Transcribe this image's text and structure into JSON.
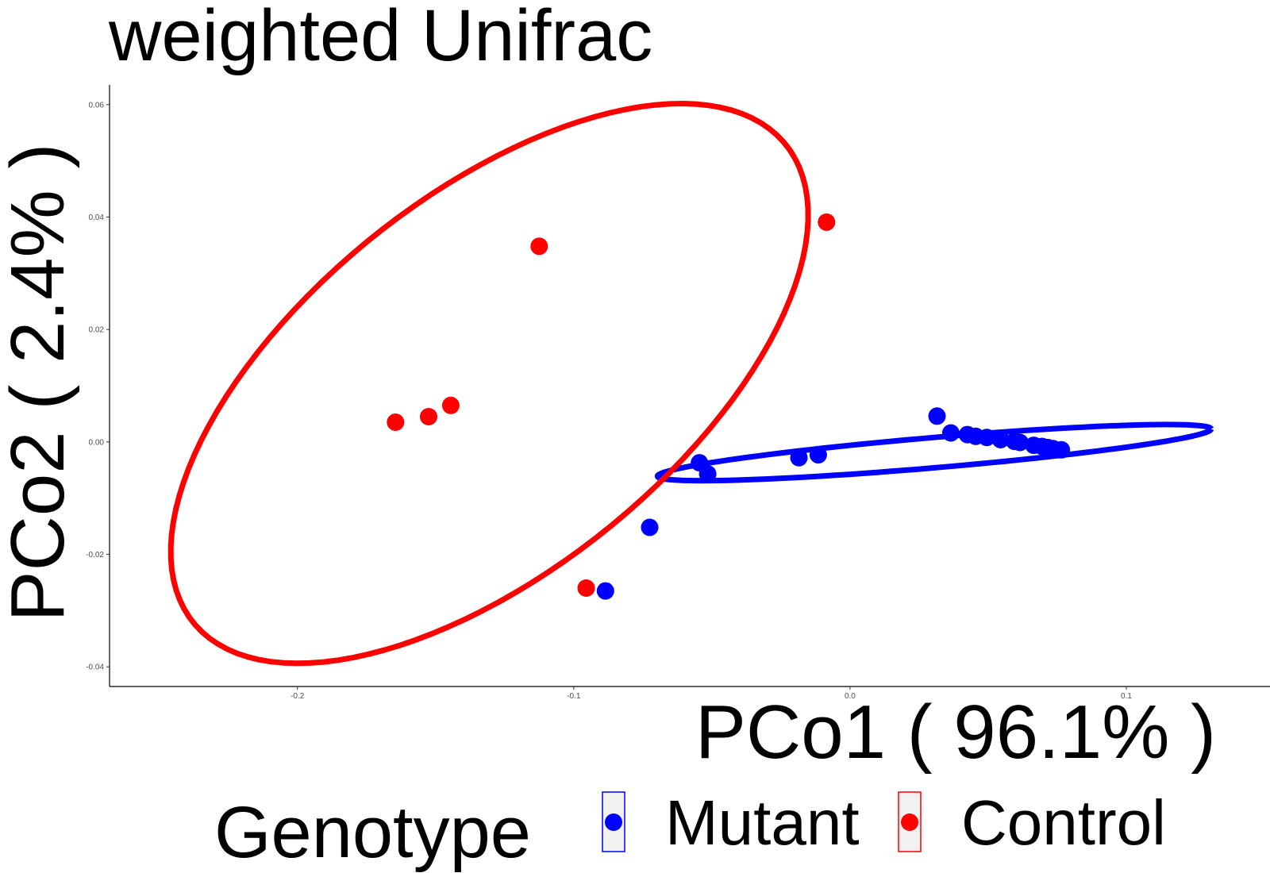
{
  "chart_data": {
    "type": "scatter",
    "title": "weighted Unifrac",
    "xlabel": "PCo1 ( 96.1% )",
    "ylabel": "PCo2 ( 2.4% )",
    "xlim": [
      -0.268,
      0.152
    ],
    "ylim": [
      -0.0435,
      0.0635
    ],
    "x_ticks": [
      -0.2,
      -0.1,
      0.0,
      0.1
    ],
    "x_tick_labels": [
      "-0.2",
      "-0.1",
      "0.0",
      "0.1"
    ],
    "y_ticks": [
      -0.04,
      -0.02,
      0.0,
      0.02,
      0.04,
      0.06
    ],
    "y_tick_labels": [
      "-0.04",
      "-0.02",
      "0.00",
      "0.02",
      "0.04",
      "0.06"
    ],
    "grid": false,
    "legend": {
      "title": "Genotype",
      "placement": "bottom"
    },
    "series": [
      {
        "name": "Mutant",
        "color": "#0000ff",
        "points": [
          [
            -0.0885,
            -0.0265
          ],
          [
            -0.0725,
            -0.0152
          ],
          [
            -0.0545,
            -0.0037
          ],
          [
            -0.0515,
            -0.0057
          ],
          [
            -0.0185,
            -0.0028
          ],
          [
            -0.0115,
            -0.0023
          ],
          [
            0.0315,
            0.0046
          ],
          [
            0.0365,
            0.0016
          ],
          [
            0.0425,
            0.0013
          ],
          [
            0.0455,
            0.001
          ],
          [
            0.0495,
            0.0008
          ],
          [
            0.0545,
            0.0004
          ],
          [
            0.0595,
            0.0001
          ],
          [
            0.0615,
            -0.0001
          ],
          [
            0.0665,
            -0.0006
          ],
          [
            0.0695,
            -0.0008
          ],
          [
            0.0715,
            -0.001
          ],
          [
            0.0735,
            -0.0012
          ],
          [
            0.0765,
            -0.0014
          ]
        ],
        "ellipse": {
          "center": [
            0.0305,
            -0.0019
          ],
          "axis_u": [
            0.1002,
            0.0042
          ],
          "axis_v": [
            0.0001,
            -0.0027
          ]
        }
      },
      {
        "name": "Control",
        "color": "#ff0000",
        "points": [
          [
            -0.1645,
            0.0035
          ],
          [
            -0.1525,
            0.0045
          ],
          [
            -0.1445,
            0.0065
          ],
          [
            -0.1125,
            0.0348
          ],
          [
            -0.0955,
            -0.026
          ],
          [
            -0.0085,
            0.0391
          ]
        ],
        "ellipse": {
          "center": [
            -0.1305,
            0.0104
          ],
          "axis_u": [
            0.1105,
            0.0401
          ],
          "axis_v": [
            0.0331,
            -0.0295
          ]
        }
      }
    ]
  }
}
